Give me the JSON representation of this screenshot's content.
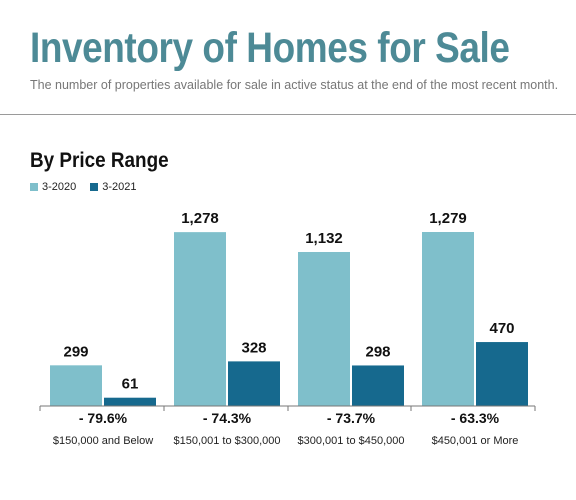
{
  "header": {
    "title": "Inventory of Homes for Sale",
    "subtitle": "The number of properties available for sale in active status at the end of the most recent month."
  },
  "section": {
    "title": "By Price Range"
  },
  "colors": {
    "title": "#4d8a96",
    "series_2020": "#7fbfcb",
    "series_2021": "#16698e"
  },
  "chart_data": {
    "type": "bar",
    "title": "By Price Range",
    "xlabel": "",
    "ylabel": "",
    "ylim": [
      0,
      1400
    ],
    "grid": false,
    "legend": "top-left",
    "categories": [
      "$150,000 and Below",
      "$150,001 to $300,000",
      "$300,001 to $450,000",
      "$450,001 or More"
    ],
    "series": [
      {
        "name": "3-2020",
        "values": [
          299,
          1278,
          1132,
          1279
        ],
        "labels": [
          "299",
          "1,278",
          "1,132",
          "1,279"
        ],
        "color": "#7fbfcb"
      },
      {
        "name": "3-2021",
        "values": [
          61,
          328,
          298,
          470
        ],
        "labels": [
          "61",
          "328",
          "298",
          "470"
        ],
        "color": "#16698e"
      }
    ],
    "changes": [
      "- 79.6%",
      "- 74.3%",
      "- 73.7%",
      "- 63.3%"
    ]
  }
}
